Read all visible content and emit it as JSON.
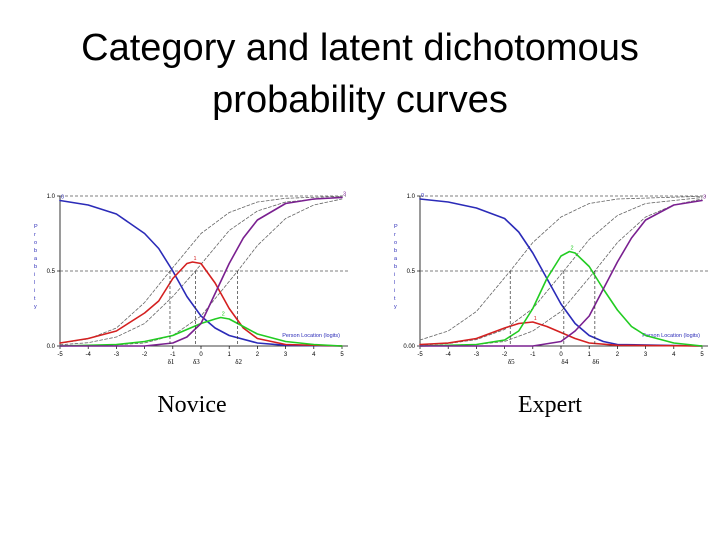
{
  "slide": {
    "title_line1": "Category and latent dichotomous",
    "title_line2": "probability curves"
  },
  "chart_data": [
    {
      "type": "line",
      "panel": "Novice",
      "caption": "Novice",
      "xlabel": "Person Location (logits)",
      "ylabel": "Probability",
      "xlim": [
        -5,
        5
      ],
      "ylim": [
        0,
        1
      ],
      "xticks": [
        -5,
        -4,
        -3,
        -2,
        -1,
        0,
        1,
        2,
        3,
        4,
        5
      ],
      "xtick_labels": [
        "-5",
        "-4",
        "-3",
        "-2",
        "-1",
        "0",
        "1",
        "2",
        "3",
        "4",
        "5"
      ],
      "yticks": [
        0,
        0.5,
        1
      ],
      "ytick_labels": [
        "0.0",
        "0.5",
        "1.0"
      ],
      "thresholds": [
        {
          "label": "δ1",
          "x": -1.1
        },
        {
          "label": "δ3",
          "x": -0.2
        },
        {
          "label": "δ2",
          "x": 1.3
        }
      ],
      "series": [
        {
          "name": "0",
          "color": "#2b2bb8",
          "values": [
            [
              -5,
              0.97
            ],
            [
              -4,
              0.94
            ],
            [
              -3,
              0.88
            ],
            [
              -2,
              0.75
            ],
            [
              -1.5,
              0.65
            ],
            [
              -1,
              0.5
            ],
            [
              -0.5,
              0.33
            ],
            [
              0,
              0.2
            ],
            [
              0.5,
              0.12
            ],
            [
              1,
              0.07
            ],
            [
              2,
              0.02
            ],
            [
              3,
              0.005
            ],
            [
              5,
              0
            ]
          ]
        },
        {
          "name": "1",
          "color": "#d42020",
          "values": [
            [
              -5,
              0.02
            ],
            [
              -4,
              0.05
            ],
            [
              -3,
              0.1
            ],
            [
              -2,
              0.22
            ],
            [
              -1.5,
              0.3
            ],
            [
              -1,
              0.45
            ],
            [
              -0.5,
              0.55
            ],
            [
              -0.3,
              0.56
            ],
            [
              0,
              0.55
            ],
            [
              0.5,
              0.42
            ],
            [
              1,
              0.25
            ],
            [
              1.5,
              0.12
            ],
            [
              2,
              0.05
            ],
            [
              3,
              0.01
            ],
            [
              5,
              0
            ]
          ]
        },
        {
          "name": "2",
          "color": "#22cc22",
          "values": [
            [
              -5,
              0
            ],
            [
              -3,
              0.01
            ],
            [
              -2,
              0.03
            ],
            [
              -1,
              0.07
            ],
            [
              0,
              0.15
            ],
            [
              0.5,
              0.18
            ],
            [
              0.7,
              0.19
            ],
            [
              1,
              0.18
            ],
            [
              1.5,
              0.13
            ],
            [
              2,
              0.08
            ],
            [
              3,
              0.03
            ],
            [
              4,
              0.01
            ],
            [
              5,
              0
            ]
          ]
        },
        {
          "name": "3",
          "color": "#7a2090",
          "values": [
            [
              -5,
              0
            ],
            [
              -2,
              0
            ],
            [
              -1,
              0.02
            ],
            [
              -0.5,
              0.06
            ],
            [
              0,
              0.15
            ],
            [
              0.5,
              0.35
            ],
            [
              1,
              0.55
            ],
            [
              1.5,
              0.72
            ],
            [
              2,
              0.84
            ],
            [
              3,
              0.95
            ],
            [
              4,
              0.98
            ],
            [
              5,
              0.99
            ]
          ]
        },
        {
          "name": "latent δ1",
          "color": "#666666",
          "dashed": true,
          "values": [
            [
              -5,
              0.018
            ],
            [
              -4,
              0.047
            ],
            [
              -3,
              0.12
            ],
            [
              -2,
              0.29
            ],
            [
              -1.1,
              0.5
            ],
            [
              0,
              0.75
            ],
            [
              1,
              0.89
            ],
            [
              2,
              0.96
            ],
            [
              3,
              0.985
            ],
            [
              5,
              0.998
            ]
          ]
        },
        {
          "name": "latent δ3",
          "color": "#666666",
          "dashed": true,
          "values": [
            [
              -5,
              0.008
            ],
            [
              -4,
              0.022
            ],
            [
              -3,
              0.06
            ],
            [
              -2,
              0.15
            ],
            [
              -1,
              0.33
            ],
            [
              -0.2,
              0.5
            ],
            [
              1,
              0.77
            ],
            [
              2,
              0.9
            ],
            [
              3,
              0.96
            ],
            [
              5,
              0.995
            ]
          ]
        },
        {
          "name": "latent δ2",
          "color": "#666666",
          "dashed": true,
          "values": [
            [
              -5,
              0.001
            ],
            [
              -3,
              0.007
            ],
            [
              -2,
              0.02
            ],
            [
              -1,
              0.07
            ],
            [
              0,
              0.2
            ],
            [
              1.3,
              0.5
            ],
            [
              2,
              0.67
            ],
            [
              3,
              0.85
            ],
            [
              4,
              0.94
            ],
            [
              5,
              0.98
            ]
          ]
        }
      ]
    },
    {
      "type": "line",
      "panel": "Expert",
      "caption": "Expert",
      "xlabel": "Person Location (logits)",
      "ylabel": "Probability",
      "xlim": [
        -5,
        5
      ],
      "ylim": [
        0,
        1
      ],
      "xticks": [
        -5,
        -4,
        -3,
        -2,
        -1,
        0,
        1,
        2,
        3,
        4,
        5
      ],
      "xtick_labels": [
        "-5",
        "-4",
        "-3",
        "-2",
        "-1",
        "0",
        "1",
        "2",
        "3",
        "4",
        "5"
      ],
      "yticks": [
        0,
        0.5,
        1
      ],
      "ytick_labels": [
        "0.00",
        "0.5",
        "1.0"
      ],
      "thresholds": [
        {
          "label": "δ5",
          "x": -1.8
        },
        {
          "label": "δ4",
          "x": 0.1
        },
        {
          "label": "δ6",
          "x": 1.2
        }
      ],
      "series": [
        {
          "name": "0",
          "color": "#2b2bb8",
          "values": [
            [
              -5,
              0.98
            ],
            [
              -4,
              0.96
            ],
            [
              -3,
              0.92
            ],
            [
              -2,
              0.85
            ],
            [
              -1.5,
              0.76
            ],
            [
              -1,
              0.62
            ],
            [
              -0.5,
              0.45
            ],
            [
              0,
              0.28
            ],
            [
              0.5,
              0.15
            ],
            [
              1,
              0.07
            ],
            [
              1.5,
              0.03
            ],
            [
              2,
              0.01
            ],
            [
              5,
              0
            ]
          ]
        },
        {
          "name": "1",
          "color": "#d42020",
          "values": [
            [
              -5,
              0.01
            ],
            [
              -4,
              0.02
            ],
            [
              -3,
              0.05
            ],
            [
              -2,
              0.12
            ],
            [
              -1.5,
              0.15
            ],
            [
              -1,
              0.16
            ],
            [
              -0.5,
              0.13
            ],
            [
              0,
              0.09
            ],
            [
              0.5,
              0.05
            ],
            [
              1,
              0.02
            ],
            [
              2,
              0.005
            ],
            [
              5,
              0
            ]
          ]
        },
        {
          "name": "2",
          "color": "#22cc22",
          "values": [
            [
              -5,
              0
            ],
            [
              -3,
              0.01
            ],
            [
              -2,
              0.04
            ],
            [
              -1.5,
              0.1
            ],
            [
              -1,
              0.25
            ],
            [
              -0.5,
              0.45
            ],
            [
              0,
              0.6
            ],
            [
              0.3,
              0.63
            ],
            [
              0.5,
              0.62
            ],
            [
              1,
              0.53
            ],
            [
              1.5,
              0.38
            ],
            [
              2,
              0.24
            ],
            [
              2.5,
              0.13
            ],
            [
              3,
              0.07
            ],
            [
              4,
              0.02
            ],
            [
              5,
              0
            ]
          ]
        },
        {
          "name": "3",
          "color": "#7a2090",
          "values": [
            [
              -5,
              0
            ],
            [
              -1,
              0
            ],
            [
              0,
              0.03
            ],
            [
              0.5,
              0.1
            ],
            [
              1,
              0.2
            ],
            [
              1.5,
              0.38
            ],
            [
              2,
              0.56
            ],
            [
              2.5,
              0.72
            ],
            [
              3,
              0.84
            ],
            [
              4,
              0.94
            ],
            [
              5,
              0.97
            ]
          ]
        },
        {
          "name": "latent δ5",
          "color": "#666666",
          "dashed": true,
          "values": [
            [
              -5,
              0.04
            ],
            [
              -4,
              0.1
            ],
            [
              -3,
              0.23
            ],
            [
              -1.8,
              0.5
            ],
            [
              -1,
              0.69
            ],
            [
              0,
              0.86
            ],
            [
              1,
              0.95
            ],
            [
              2,
              0.98
            ],
            [
              5,
              0.998
            ]
          ]
        },
        {
          "name": "latent δ4",
          "color": "#666666",
          "dashed": true,
          "values": [
            [
              -5,
              0.006
            ],
            [
              -4,
              0.016
            ],
            [
              -3,
              0.043
            ],
            [
              -2,
              0.11
            ],
            [
              -1,
              0.25
            ],
            [
              0.1,
              0.5
            ],
            [
              1,
              0.71
            ],
            [
              2,
              0.87
            ],
            [
              3,
              0.95
            ],
            [
              5,
              0.99
            ]
          ]
        },
        {
          "name": "latent δ6",
          "color": "#666666",
          "dashed": true,
          "values": [
            [
              -5,
              0.001
            ],
            [
              -3,
              0.01
            ],
            [
              -2,
              0.03
            ],
            [
              -1,
              0.1
            ],
            [
              0,
              0.23
            ],
            [
              1.2,
              0.5
            ],
            [
              2,
              0.69
            ],
            [
              3,
              0.86
            ],
            [
              4,
              0.94
            ],
            [
              5,
              0.98
            ]
          ]
        }
      ]
    }
  ]
}
